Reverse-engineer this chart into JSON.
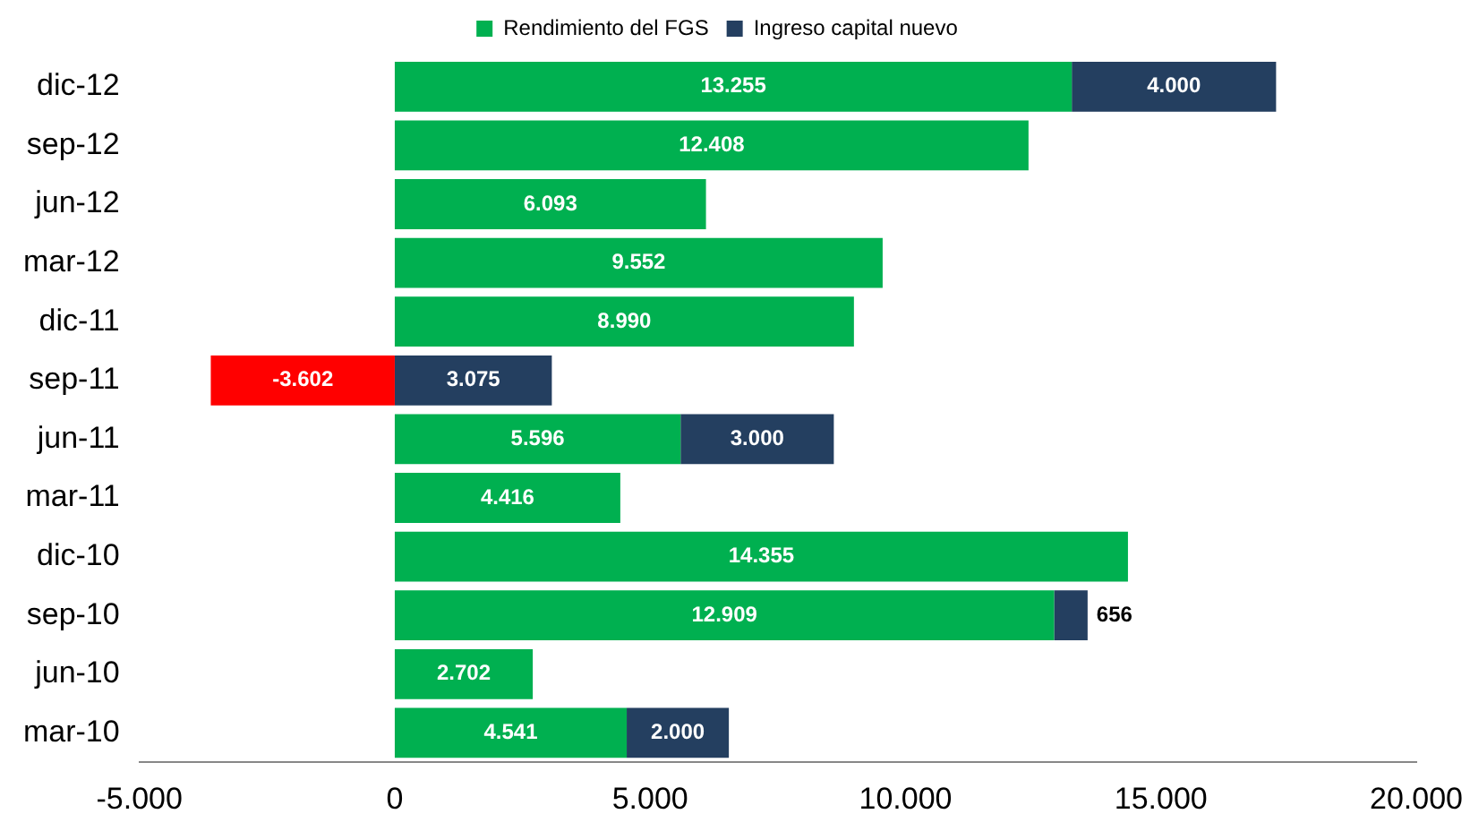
{
  "chart_data": {
    "type": "bar",
    "orientation": "horizontal",
    "stacked": true,
    "categories": [
      "dic-12",
      "sep-12",
      "jun-12",
      "mar-12",
      "dic-11",
      "sep-11",
      "jun-11",
      "mar-11",
      "dic-10",
      "sep-10",
      "jun-10",
      "mar-10"
    ],
    "series": [
      {
        "name": "Rendimiento del FGS",
        "color": "#00b050",
        "colors": [
          "#00b050",
          "#00b050",
          "#00b050",
          "#00b050",
          "#00b050",
          "#ff0000",
          "#00b050",
          "#00b050",
          "#00b050",
          "#00b050",
          "#00b050",
          "#00b050"
        ],
        "values": [
          13255,
          12408,
          6093,
          9552,
          8990,
          -3602,
          5596,
          4416,
          14355,
          12909,
          2702,
          4541
        ],
        "value_labels": [
          "13.255",
          "12.408",
          "6.093",
          "9.552",
          "8.990",
          "-3.602",
          "5.596",
          "4.416",
          "14.355",
          "12.909",
          "2.702",
          "4.541"
        ]
      },
      {
        "name": "Ingreso capital nuevo",
        "color": "#243f60",
        "values": [
          4000,
          null,
          null,
          null,
          null,
          3075,
          3000,
          null,
          null,
          656,
          null,
          2000
        ],
        "value_labels": [
          "4.000",
          null,
          null,
          null,
          null,
          "3.075",
          "3.000",
          null,
          null,
          "656",
          null,
          "2.000"
        ]
      }
    ],
    "xlim": [
      -5000,
      20000
    ],
    "xticks": [
      {
        "value": -5000,
        "label": "-5.000"
      },
      {
        "value": 0,
        "label": "0"
      },
      {
        "value": 5000,
        "label": "5.000"
      },
      {
        "value": 10000,
        "label": "10.000"
      },
      {
        "value": 15000,
        "label": "15.000"
      },
      {
        "value": 20000,
        "label": "20.000"
      }
    ],
    "grid": false,
    "legend": "top"
  }
}
